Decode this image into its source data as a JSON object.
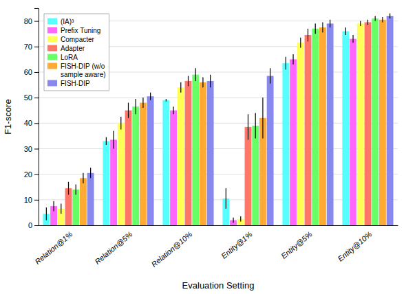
{
  "chart_data": {
    "type": "bar",
    "categories": [
      "Relation@1%",
      "Relation@5%",
      "Relation@10%",
      "Entity@1%",
      "Entity@5%",
      "Entity@10%"
    ],
    "series": [
      {
        "name": "(IA)³",
        "color": "#55FFFF",
        "values": [
          4.5,
          33.0,
          49.0,
          10.5,
          63.5,
          76.0
        ],
        "errors": [
          2.5,
          1.5,
          0.5,
          4.0,
          2.5,
          1.5
        ]
      },
      {
        "name": "Prefix Tuning",
        "color": "#FF66FF",
        "values": [
          7.5,
          33.5,
          45.0,
          2.0,
          65.0,
          73.0
        ],
        "errors": [
          2.0,
          3.5,
          1.5,
          1.0,
          2.0,
          1.5
        ]
      },
      {
        "name": "Compacter",
        "color": "#FFFF55",
        "values": [
          6.5,
          40.0,
          54.0,
          2.5,
          71.5,
          79.0
        ],
        "errors": [
          2.0,
          2.5,
          2.0,
          1.0,
          2.0,
          1.0
        ]
      },
      {
        "name": "Adapter",
        "color": "#FF7766",
        "values": [
          14.5,
          45.0,
          56.5,
          38.5,
          74.5,
          79.5
        ],
        "errors": [
          2.5,
          3.0,
          2.0,
          5.0,
          2.5,
          1.0
        ]
      },
      {
        "name": "LoRA",
        "color": "#66FF66",
        "values": [
          14.0,
          46.5,
          59.0,
          39.0,
          77.0,
          81.0
        ],
        "errors": [
          2.0,
          3.0,
          2.5,
          5.0,
          2.0,
          1.0
        ]
      },
      {
        "name": "FISH-DIP (w/o\nsample aware)",
        "color": "#FFAA33",
        "values": [
          18.5,
          48.0,
          56.0,
          42.0,
          77.5,
          80.5
        ],
        "errors": [
          2.0,
          2.0,
          2.0,
          8.0,
          2.0,
          1.0
        ]
      },
      {
        "name": "FISH-DIP",
        "color": "#8888EE",
        "values": [
          20.5,
          50.5,
          56.5,
          58.5,
          79.0,
          82.0
        ],
        "errors": [
          2.0,
          1.5,
          2.5,
          3.0,
          1.5,
          1.0
        ]
      }
    ],
    "xlabel": "Evaluation Setting",
    "ylabel": "F1-score",
    "ylim": [
      0,
      85
    ],
    "yticks": [
      0,
      10,
      20,
      30,
      40,
      50,
      60,
      70,
      80
    ],
    "grid": true,
    "legend": "upper left"
  }
}
